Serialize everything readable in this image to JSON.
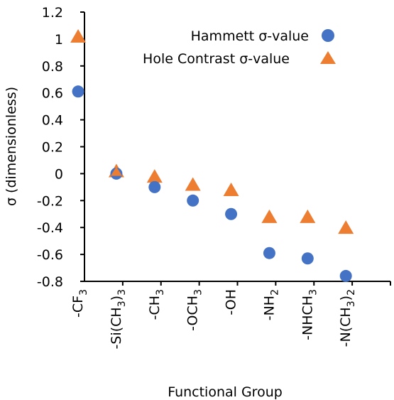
{
  "chart_data": {
    "type": "scatter",
    "xlabel": "Functional Group",
    "ylabel": "σ (dimensionless)",
    "ylim": [
      -0.8,
      1.2
    ],
    "yticks": [
      1.2,
      1,
      0.8,
      0.6,
      0.4,
      0.2,
      0,
      -0.2,
      -0.4,
      -0.6,
      -0.8
    ],
    "ytick_labels": [
      "1.2",
      "1",
      "0.8",
      "0.6",
      "0.4",
      "0.2",
      "0",
      "-0.2",
      "-0.4",
      "-0.6",
      "-0.8"
    ],
    "categories": [
      {
        "pre": "-CF",
        "sub": "3",
        "post": ""
      },
      {
        "pre": "-Si(CH",
        "sub": "3",
        "post": ")",
        "sub2": "3"
      },
      {
        "pre": "-CH",
        "sub": "3",
        "post": ""
      },
      {
        "pre": "-OCH",
        "sub": "3",
        "post": ""
      },
      {
        "pre": "-OH",
        "sub": "",
        "post": ""
      },
      {
        "pre": "-NH",
        "sub": "2",
        "post": ""
      },
      {
        "pre": "-NHCH",
        "sub": "3",
        "post": ""
      },
      {
        "pre": "-N(CH",
        "sub": "3",
        "post": ")",
        "sub2": "2"
      }
    ],
    "series": [
      {
        "name": "Hammett σ-value",
        "marker": "circle",
        "color": "#4472C4",
        "values": [
          0.61,
          0.0,
          -0.1,
          -0.2,
          -0.3,
          -0.59,
          -0.63,
          -0.76
        ]
      },
      {
        "name": "Hole Contrast σ-value",
        "marker": "triangle",
        "color": "#ED7D31",
        "values": [
          1.01,
          0.01,
          -0.03,
          -0.09,
          -0.13,
          -0.33,
          -0.33,
          -0.41
        ]
      }
    ],
    "legend": "top-right",
    "grid": false
  }
}
